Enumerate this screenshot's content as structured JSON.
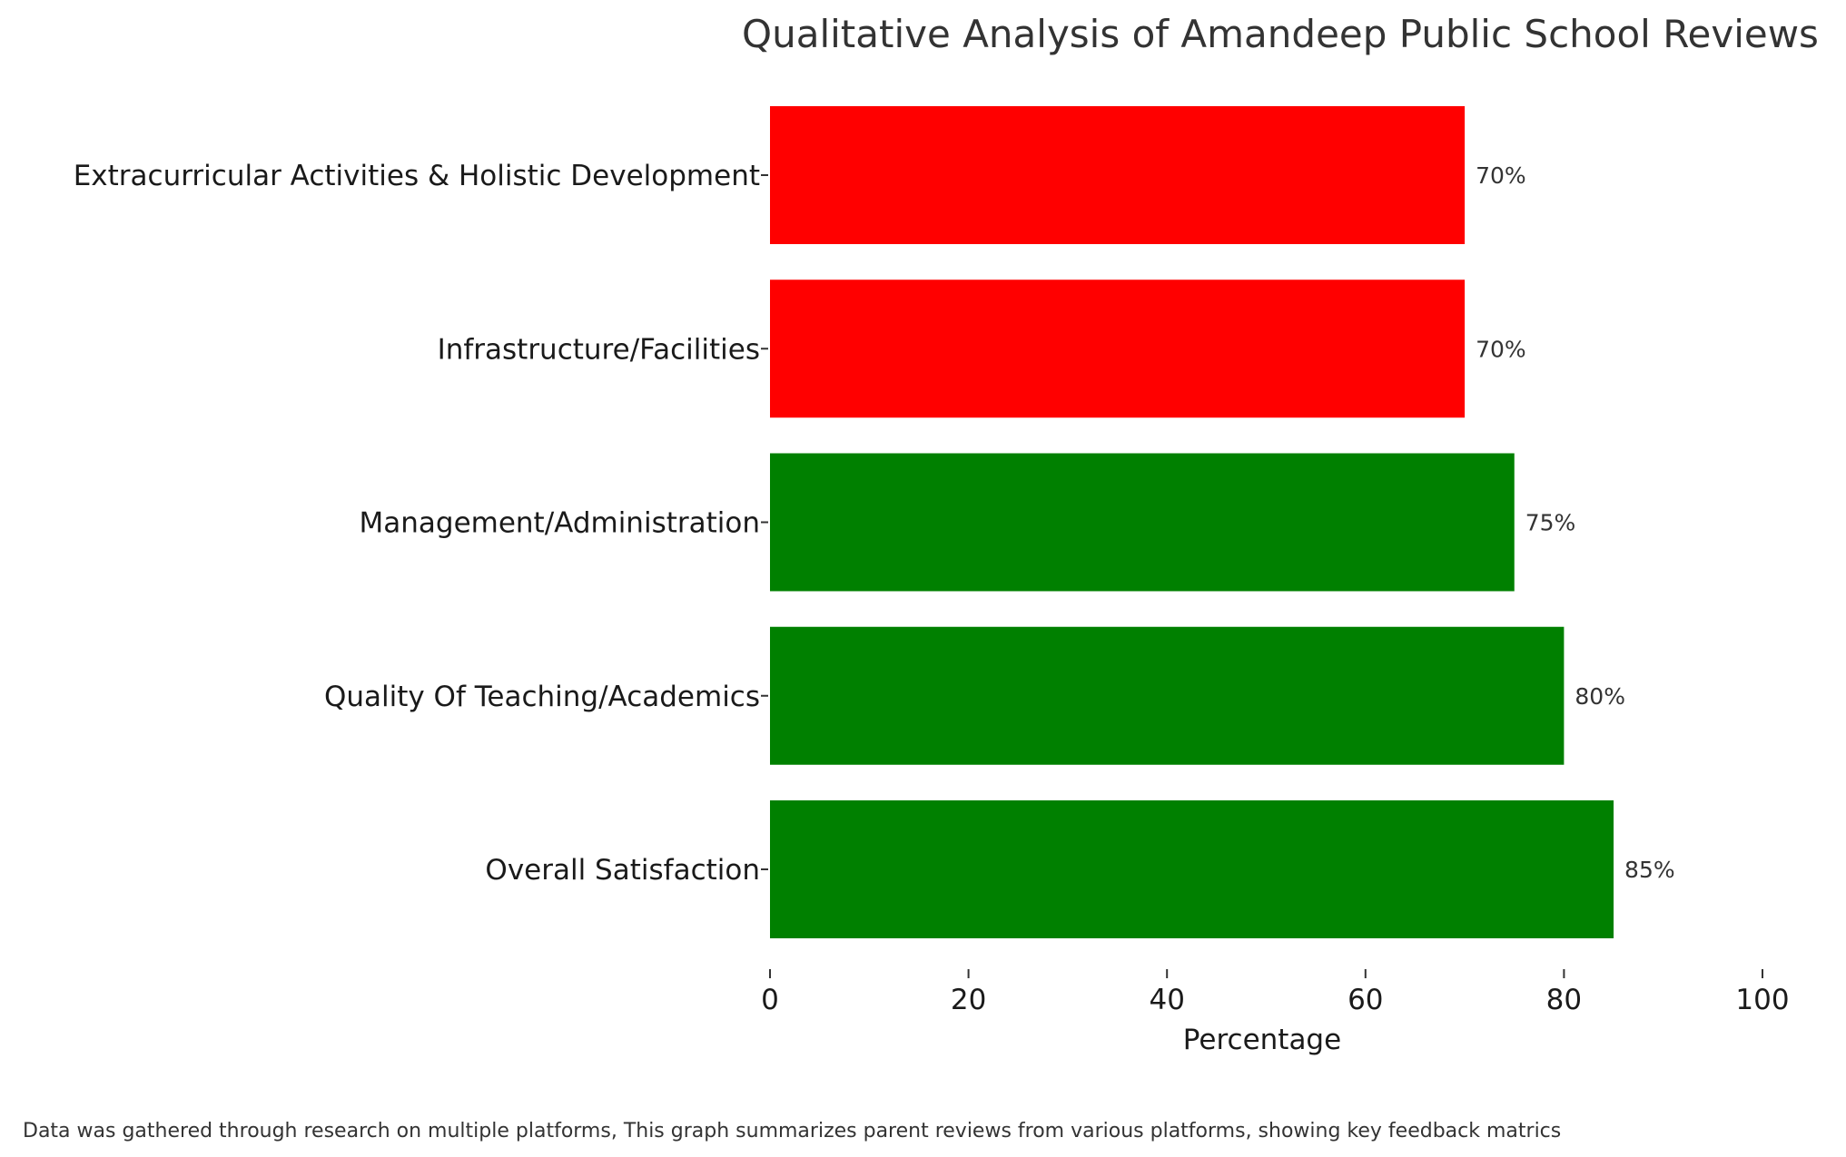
{
  "chart_data": {
    "type": "bar",
    "orientation": "horizontal",
    "title": "Qualitative Analysis of Amandeep Public School Reviews",
    "xlabel": "Percentage",
    "ylabel": "",
    "xlim": [
      0,
      100
    ],
    "xticks": [
      0,
      20,
      40,
      60,
      80,
      100
    ],
    "categories": [
      "Overall Satisfaction",
      "Quality Of Teaching/Academics",
      "Management/Administration",
      "Infrastructure/Facilities",
      "Extracurricular Activities & Holistic Development"
    ],
    "values": [
      85,
      80,
      75,
      70,
      70
    ],
    "data_labels": [
      "85%",
      "80%",
      "75%",
      "70%",
      "70%"
    ],
    "colors": [
      "#008000",
      "#008000",
      "#008000",
      "#ff0000",
      "#ff0000"
    ],
    "grid": false,
    "legend": "none"
  },
  "footnote": "Data was gathered through research on multiple platforms, This graph summarizes parent reviews from various platforms, showing key feedback matrics"
}
